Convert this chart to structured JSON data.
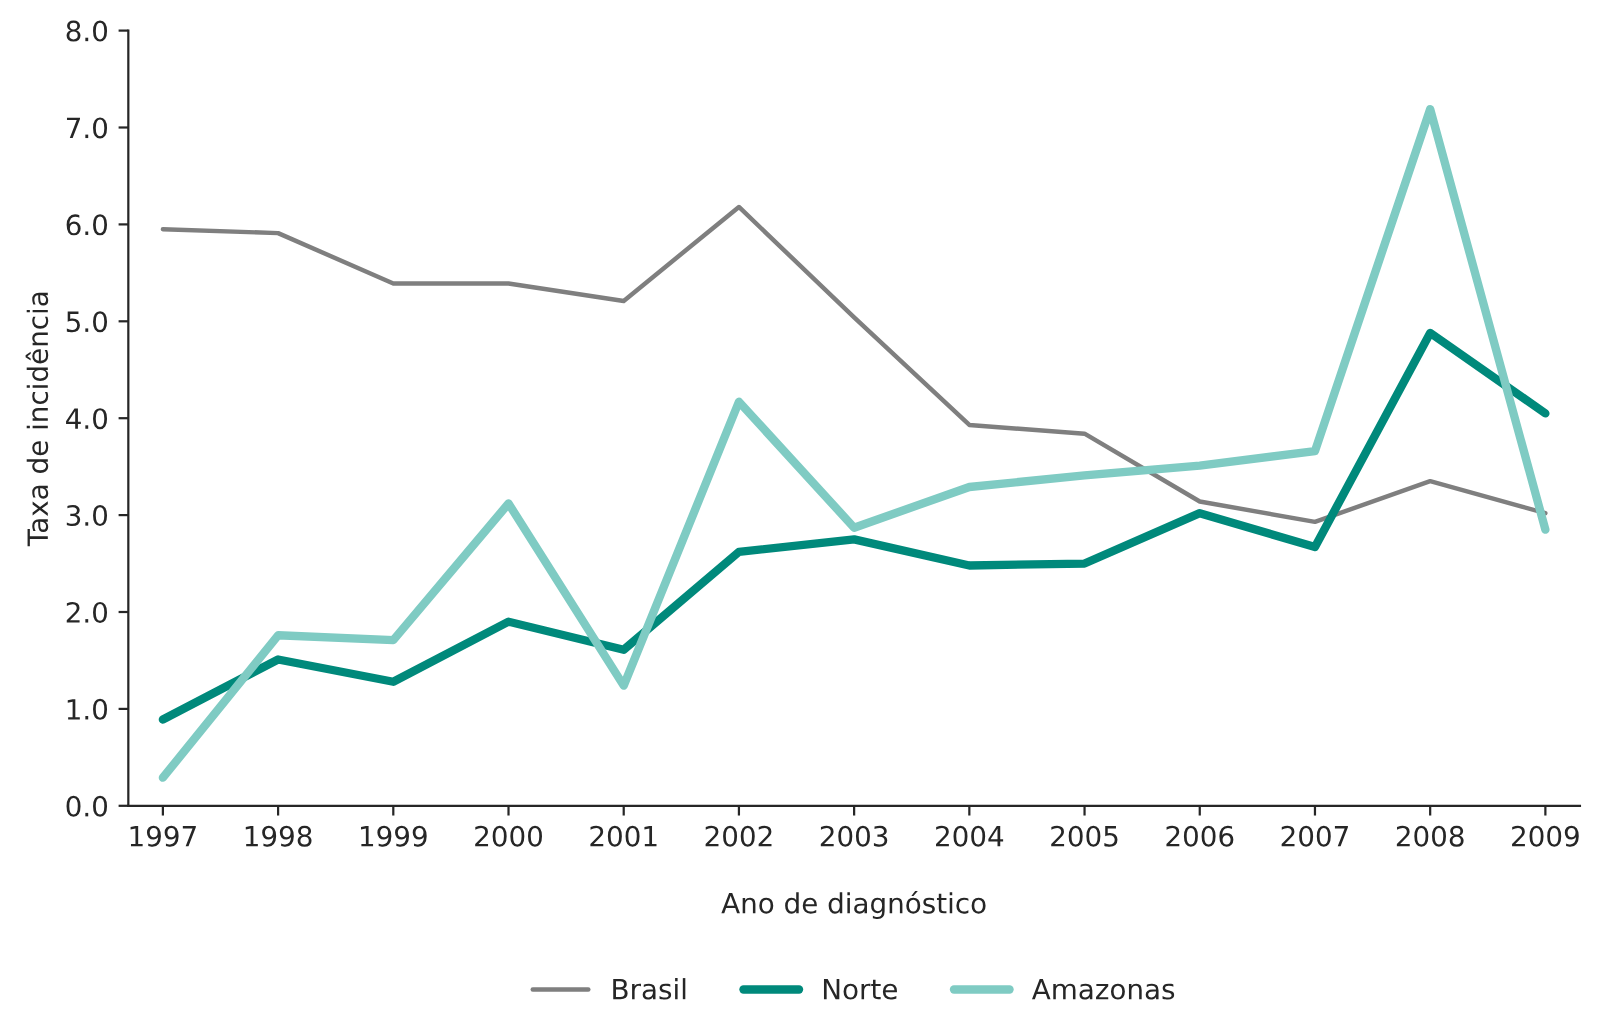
{
  "chart_data": {
    "type": "line",
    "xlabel": "Ano de diagnóstico",
    "ylabel": "Taxa de incidência",
    "categories": [
      "1997",
      "1998",
      "1999",
      "2000",
      "2001",
      "2002",
      "2003",
      "2004",
      "2005",
      "2006",
      "2007",
      "2008",
      "2009"
    ],
    "series": [
      {
        "name": "Brasil",
        "color": "#7f7f7f",
        "values": [
          5.95,
          5.91,
          5.39,
          5.39,
          5.21,
          6.18,
          5.04,
          3.93,
          3.84,
          3.14,
          2.93,
          3.35,
          3.02
        ]
      },
      {
        "name": "Norte",
        "color": "#00897b",
        "values": [
          0.89,
          1.51,
          1.28,
          1.9,
          1.61,
          2.62,
          2.75,
          2.48,
          2.5,
          3.02,
          2.67,
          4.88,
          4.05
        ]
      },
      {
        "name": "Amazonas",
        "color": "#7fcbc3",
        "values": [
          0.29,
          1.76,
          1.71,
          3.12,
          1.24,
          4.17,
          2.87,
          3.29,
          3.41,
          3.51,
          3.66,
          7.19,
          2.85
        ]
      }
    ],
    "ylim": [
      0,
      8
    ],
    "yticks": [
      {
        "value": 0,
        "label": "0.0"
      },
      {
        "value": 1,
        "label": "1.0"
      },
      {
        "value": 2,
        "label": "2.0"
      },
      {
        "value": 3,
        "label": "3.0"
      },
      {
        "value": 4,
        "label": "4.0"
      },
      {
        "value": 5,
        "label": "5.0"
      },
      {
        "value": 6,
        "label": "6.0"
      },
      {
        "value": 7,
        "label": "7.0"
      },
      {
        "value": 8,
        "label": "8.0"
      }
    ],
    "legend": "bottom",
    "grid": false,
    "marker": "none",
    "line_style": "solid"
  }
}
